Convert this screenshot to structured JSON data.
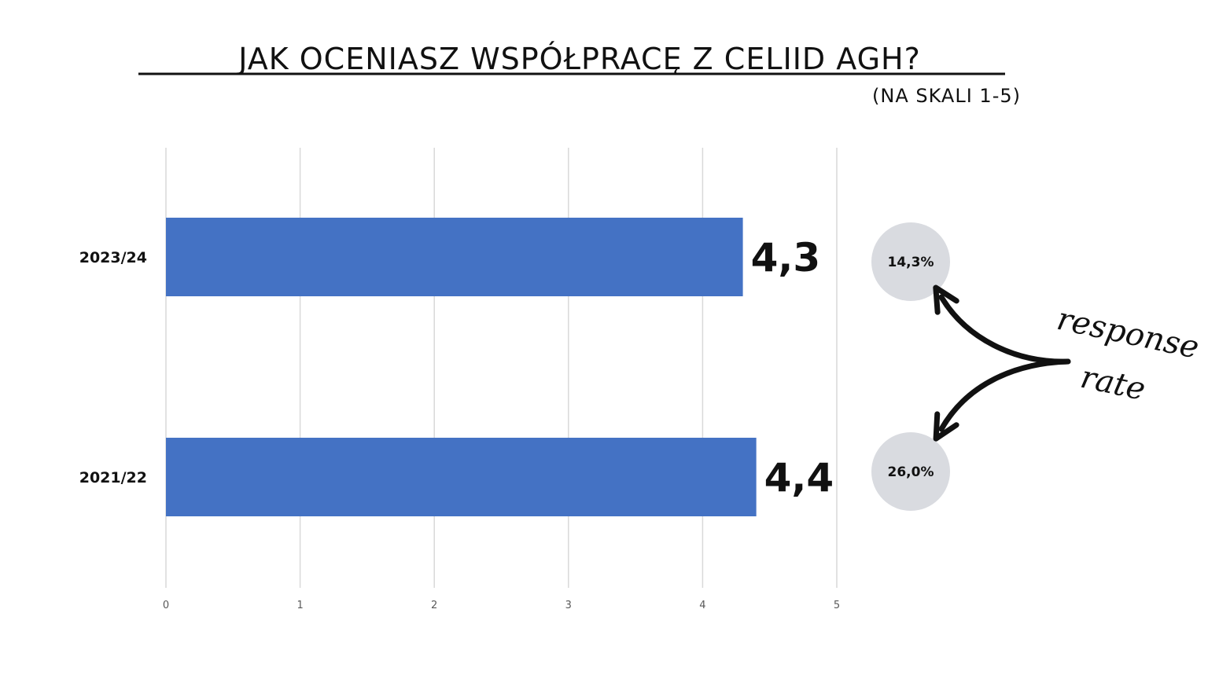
{
  "title": "JAK OCENIASZ WSPÓŁPRACĘ Z CELIID AGH?",
  "subtitle": "(NA SKALI 1-5)",
  "colors": {
    "bar": "#4472c4",
    "grid": "#d9d9d9",
    "bubble": "#d9dbe0",
    "text": "#111111",
    "tick": "#595959"
  },
  "chart_data": {
    "type": "bar",
    "orientation": "horizontal",
    "categories": [
      "2023/24",
      "2021/22"
    ],
    "values": [
      4.3,
      4.4
    ],
    "value_labels": [
      "4,3",
      "4,4"
    ],
    "xlim": [
      0,
      5
    ],
    "x_ticks": [
      "0",
      "1",
      "2",
      "3",
      "4",
      "5"
    ],
    "grid": true,
    "legend": "none"
  },
  "response_rate": {
    "label_line1": "response",
    "label_line2": "rate",
    "values": [
      "14,3%",
      "26,0%"
    ]
  }
}
